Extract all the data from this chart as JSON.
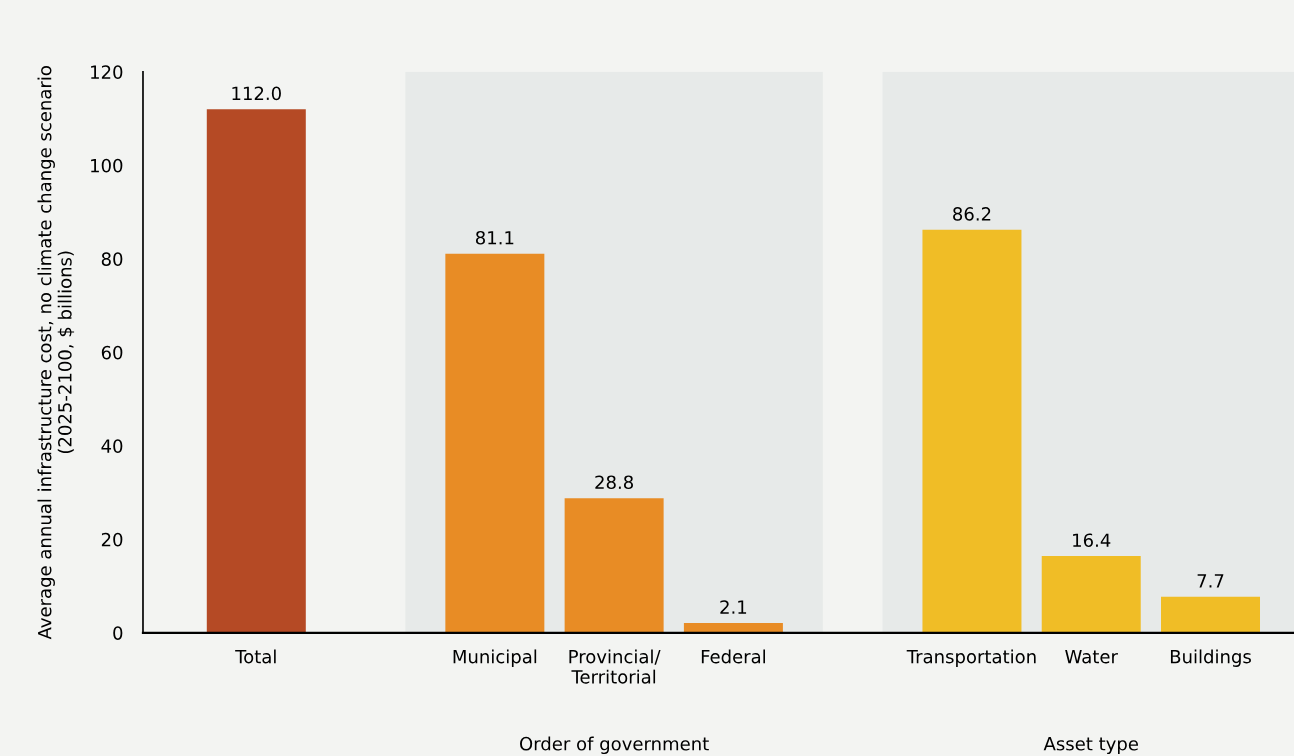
{
  "chart_data": {
    "type": "bar",
    "ylabel": "Average annual infrastructure cost, no climate change scenario\n(2025-2100, $ billions)",
    "categories": [
      "Total",
      null,
      "Municipal",
      "Provincial/\nTerritorial",
      "Federal",
      null,
      "Transportation",
      "Water",
      "Buildings"
    ],
    "values": [
      112.0,
      null,
      81.1,
      28.8,
      2.1,
      null,
      86.2,
      16.4,
      7.7
    ],
    "colors": [
      "#b54a25",
      null,
      "#e88c25",
      "#e88c25",
      "#e88c25",
      null,
      "#f0bd26",
      "#f0bd26",
      "#f0bd26"
    ],
    "value_labels": [
      "112.0",
      null,
      "81.1",
      "28.8",
      "2.1",
      null,
      "86.2",
      "16.4",
      "7.7"
    ],
    "annotations": [
      "Order of government",
      "Asset type"
    ],
    "ylim": [
      0,
      120
    ],
    "yticks": [
      0,
      20,
      40,
      60,
      80,
      100,
      120
    ],
    "grid": false
  }
}
